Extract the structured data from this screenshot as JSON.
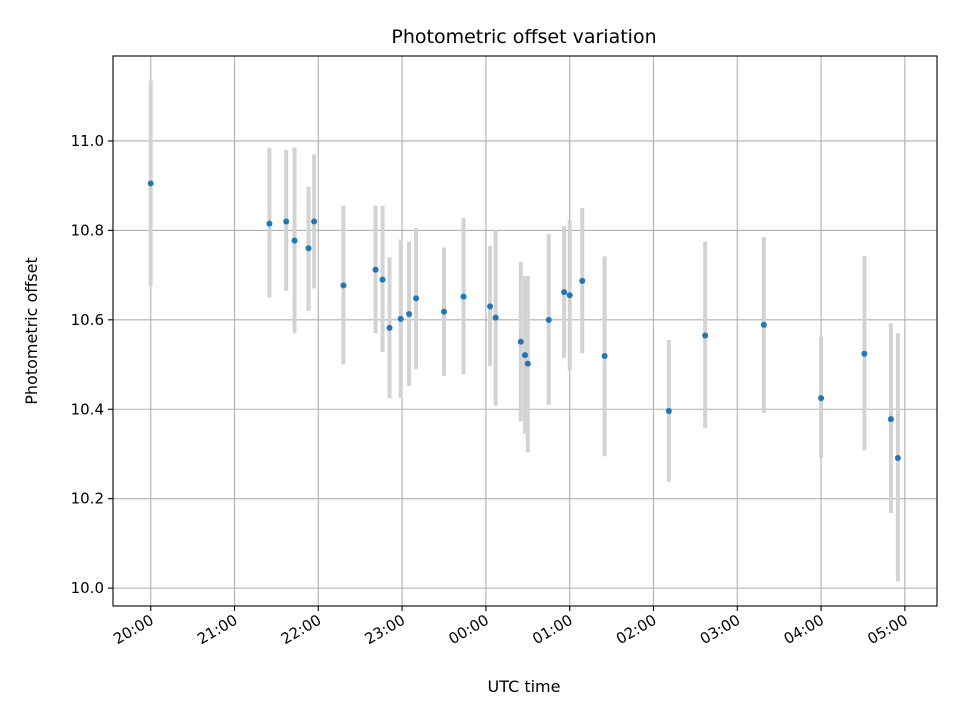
{
  "chart_data": {
    "type": "scatter",
    "title": "Photometric offset variation",
    "xlabel": "UTC time",
    "ylabel": "Photometric offset",
    "x_unit": "hours",
    "xlim": [
      "19:33",
      "05:23"
    ],
    "ylim": [
      9.96,
      11.19
    ],
    "grid": true,
    "x_ticks": [
      "20:00",
      "21:00",
      "22:00",
      "23:00",
      "00:00",
      "01:00",
      "02:00",
      "03:00",
      "04:00",
      "05:00"
    ],
    "y_ticks": [
      "10.0",
      "10.2",
      "10.4",
      "10.6",
      "10.8",
      "11.0"
    ],
    "point_color": "#1f77b4",
    "errorbar_color": "#d3d3d3",
    "points": [
      {
        "x": "20:00",
        "y": 10.905,
        "err_low": 10.675,
        "err_high": 11.135
      },
      {
        "x": "21:25",
        "y": 10.815,
        "err_low": 10.65,
        "err_high": 10.985
      },
      {
        "x": "21:37",
        "y": 10.82,
        "err_low": 10.665,
        "err_high": 10.98
      },
      {
        "x": "21:43",
        "y": 10.777,
        "err_low": 10.57,
        "err_high": 10.985
      },
      {
        "x": "21:53",
        "y": 10.76,
        "err_low": 10.62,
        "err_high": 10.898
      },
      {
        "x": "21:57",
        "y": 10.82,
        "err_low": 10.67,
        "err_high": 10.97
      },
      {
        "x": "22:18",
        "y": 10.677,
        "err_low": 10.5,
        "err_high": 10.855
      },
      {
        "x": "22:41",
        "y": 10.712,
        "err_low": 10.57,
        "err_high": 10.855
      },
      {
        "x": "22:46",
        "y": 10.69,
        "err_low": 10.528,
        "err_high": 10.855
      },
      {
        "x": "22:51",
        "y": 10.582,
        "err_low": 10.425,
        "err_high": 10.74
      },
      {
        "x": "22:59",
        "y": 10.602,
        "err_low": 10.425,
        "err_high": 10.78
      },
      {
        "x": "23:05",
        "y": 10.613,
        "err_low": 10.452,
        "err_high": 10.775
      },
      {
        "x": "23:10",
        "y": 10.648,
        "err_low": 10.49,
        "err_high": 10.805
      },
      {
        "x": "23:30",
        "y": 10.618,
        "err_low": 10.475,
        "err_high": 10.762
      },
      {
        "x": "23:44",
        "y": 10.652,
        "err_low": 10.478,
        "err_high": 10.828
      },
      {
        "x": "00:03",
        "y": 10.63,
        "err_low": 10.497,
        "err_high": 10.765
      },
      {
        "x": "00:07",
        "y": 10.605,
        "err_low": 10.408,
        "err_high": 10.8
      },
      {
        "x": "00:25",
        "y": 10.551,
        "err_low": 10.373,
        "err_high": 10.73
      },
      {
        "x": "00:28",
        "y": 10.521,
        "err_low": 10.345,
        "err_high": 10.698
      },
      {
        "x": "00:30",
        "y": 10.502,
        "err_low": 10.303,
        "err_high": 10.698
      },
      {
        "x": "00:45",
        "y": 10.6,
        "err_low": 10.41,
        "err_high": 10.792
      },
      {
        "x": "00:56",
        "y": 10.662,
        "err_low": 10.515,
        "err_high": 10.81
      },
      {
        "x": "01:00",
        "y": 10.655,
        "err_low": 10.485,
        "err_high": 10.823
      },
      {
        "x": "01:09",
        "y": 10.687,
        "err_low": 10.525,
        "err_high": 10.85
      },
      {
        "x": "01:25",
        "y": 10.519,
        "err_low": 10.295,
        "err_high": 10.742
      },
      {
        "x": "02:11",
        "y": 10.396,
        "err_low": 10.238,
        "err_high": 10.555
      },
      {
        "x": "02:37",
        "y": 10.565,
        "err_low": 10.358,
        "err_high": 10.775
      },
      {
        "x": "03:19",
        "y": 10.589,
        "err_low": 10.392,
        "err_high": 10.785
      },
      {
        "x": "04:00",
        "y": 10.425,
        "err_low": 10.292,
        "err_high": 10.562
      },
      {
        "x": "04:31",
        "y": 10.524,
        "err_low": 10.308,
        "err_high": 10.743
      },
      {
        "x": "04:50",
        "y": 10.378,
        "err_low": 10.168,
        "err_high": 10.592
      },
      {
        "x": "04:55",
        "y": 10.291,
        "err_low": 10.015,
        "err_high": 10.57
      }
    ]
  }
}
